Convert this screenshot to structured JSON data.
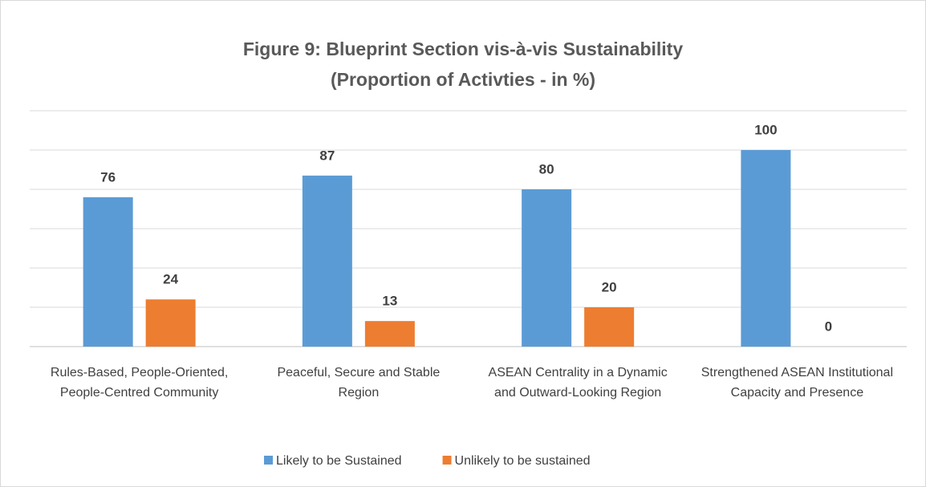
{
  "chart_data": {
    "type": "bar",
    "title": "Figure 9: Blueprint Section vis-à-vis Sustainability (Proportion of Activties - in %)",
    "categories": [
      "Rules-Based, People-Oriented, People-Centred Community",
      "Peaceful, Secure and Stable Region",
      "ASEAN Centrality in a Dynamic and Outward-Looking Region",
      "Strengthened ASEAN Institutional Capacity and Presence"
    ],
    "series": [
      {
        "name": "Likely to be Sustained",
        "color": "#5b9bd5",
        "values": [
          76,
          87,
          80,
          100
        ]
      },
      {
        "name": "Unlikely to be sustained",
        "color": "#ed7d31",
        "values": [
          24,
          13,
          20,
          0
        ]
      }
    ],
    "ylim": [
      0,
      120
    ],
    "yticks": [
      0,
      20,
      40,
      60,
      80,
      100,
      120
    ],
    "grid": true,
    "legend": "bottom"
  }
}
